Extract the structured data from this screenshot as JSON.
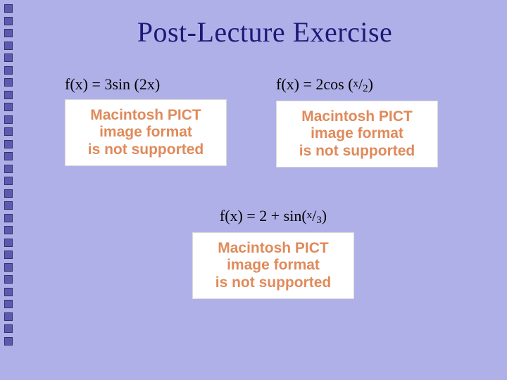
{
  "background_color": "#b0b0e8",
  "border_square_color": "#5a5ab0",
  "title": {
    "text": "Post-Lecture Exercise",
    "color": "#1a1a7a",
    "fontsize": 40
  },
  "placeholder_message": {
    "line1": "Macintosh PICT",
    "line2": "image format",
    "line3": "is not supported",
    "text_color": "#e08a5a",
    "bg_color": "#ffffff"
  },
  "functions": {
    "f1": {
      "prefix": "f(x) = 3sin (2x)"
    },
    "f2": {
      "prefix": "f(x) = 2cos (",
      "num": "x",
      "den": "2",
      "suffix": ")"
    },
    "f3": {
      "prefix": "f(x) = 2 + sin(",
      "num": "x",
      "den": "3",
      "suffix": ")"
    }
  },
  "border_square_count": 28
}
